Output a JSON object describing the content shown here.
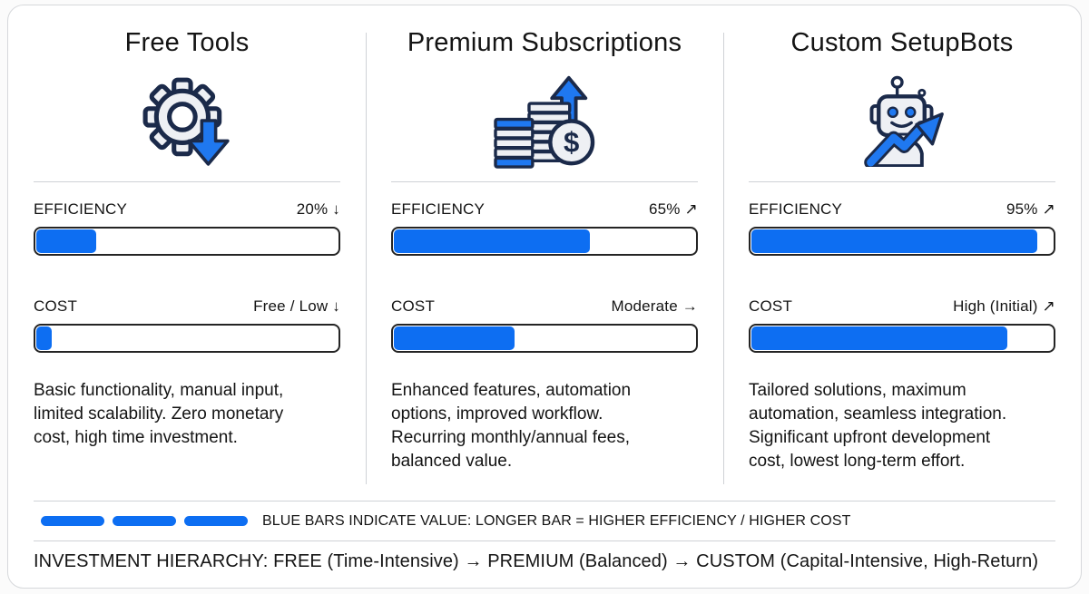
{
  "colors": {
    "accent_blue": "#0d6ef2",
    "icon_outline_navy": "#1b2a4a",
    "icon_fill_gray": "#eef0f4",
    "bar_border": "#242424",
    "divider": "#cfd2d6"
  },
  "columns": [
    {
      "title": "Free Tools",
      "icon": "gear-down-arrow-icon",
      "efficiency": {
        "label": "EFFICIENCY",
        "value": "20% ↓",
        "percent": 20
      },
      "cost": {
        "label": "COST",
        "value": "Free / Low ↓",
        "percent": 5
      },
      "description": "Basic functionality, manual input,\nlimited scalability. Zero monetary\ncost, high time investment."
    },
    {
      "title": "Premium Subscriptions",
      "icon": "coins-up-arrow-icon",
      "efficiency": {
        "label": "EFFICIENCY",
        "value": "65% ↗",
        "percent": 65
      },
      "cost": {
        "label": "COST",
        "value": "Moderate →",
        "percent": 40
      },
      "description": "Enhanced features, automation\noptions, improved workflow.\nRecurring monthly/annual fees,\nbalanced value."
    },
    {
      "title": "Custom SetupBots",
      "icon": "robot-trend-up-icon",
      "efficiency": {
        "label": "EFFICIENCY",
        "value": "95% ↗",
        "percent": 95
      },
      "cost": {
        "label": "COST",
        "value": "High (Initial) ↗",
        "percent": 85
      },
      "description": "Tailored solutions, maximum\nautomation, seamless integration.\nSignificant upfront development\ncost, lowest long-term effort."
    }
  ],
  "legend": {
    "text": "BLUE BARS INDICATE VALUE: LONGER BAR = HIGHER EFFICIENCY / HIGHER COST"
  },
  "footer": {
    "text": "INVESTMENT HIERARCHY: FREE (Time-Intensive) → PREMIUM (Balanced) → CUSTOM (Capital-Intensive, High-Return)"
  },
  "chart_data": {
    "type": "bar",
    "categories": [
      "Free Tools",
      "Premium Subscriptions",
      "Custom SetupBots"
    ],
    "series": [
      {
        "name": "Efficiency",
        "values": [
          20,
          65,
          95
        ],
        "value_labels": [
          "20% ↓",
          "65% ↗",
          "95% ↗"
        ]
      },
      {
        "name": "Cost",
        "values": [
          5,
          40,
          85
        ],
        "value_labels": [
          "Free / Low ↓",
          "Moderate →",
          "High (Initial) ↗"
        ]
      }
    ],
    "ylim": [
      0,
      100
    ],
    "legend_note": "BLUE BARS INDICATE VALUE: LONGER BAR = HIGHER EFFICIENCY / HIGHER COST",
    "annotation": "INVESTMENT HIERARCHY: FREE (Time-Intensive) → PREMIUM (Balanced) → CUSTOM (Capital-Intensive, High-Return)"
  }
}
